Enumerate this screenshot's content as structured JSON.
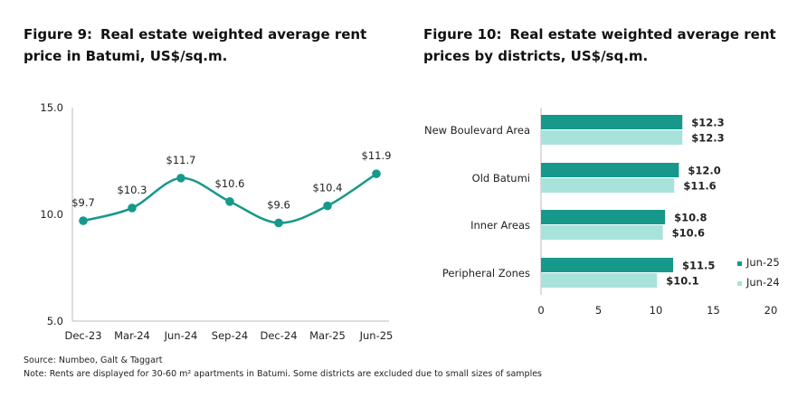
{
  "figure9": {
    "number": "Figure 9:",
    "title": "Real estate weighted average rent price in Batumi, US$/sq.m."
  },
  "figure10": {
    "number": "Figure 10:",
    "title": "Real estate weighted average rent prices by districts, US$/sq.m."
  },
  "footer": {
    "source": "Source: Numbeo, Galt & Taggart",
    "note": "Note: Rents are displayed for 30-60 m² apartments in Batumi. Some districts are excluded due to small sizes of samples"
  },
  "colors": {
    "primary": "#16998a",
    "secondary": "#a8e3db",
    "axis": "#bbbbbb",
    "text": "#222222"
  },
  "chart_data": [
    {
      "type": "line",
      "categories": [
        "Dec-23",
        "Mar-24",
        "Jun-24",
        "Sep-24",
        "Dec-24",
        "Mar-25",
        "Jun-25"
      ],
      "values": [
        9.7,
        10.3,
        11.7,
        10.6,
        9.6,
        10.4,
        11.9
      ],
      "data_labels": [
        "$9.7",
        "$10.3",
        "$11.7",
        "$10.6",
        "$9.6",
        "$10.4",
        "$11.9"
      ],
      "ylim": [
        5.0,
        15.0
      ],
      "yticks": [
        "5.0",
        "10.0",
        "15.0"
      ],
      "smooth": true,
      "grid": false
    },
    {
      "type": "bar",
      "orientation": "horizontal",
      "categories": [
        "New Boulevard Area",
        "Old Batumi",
        "Inner Areas",
        "Peripheral Zones"
      ],
      "series": [
        {
          "name": "Jun-25",
          "values": [
            12.3,
            12.0,
            10.8,
            11.5
          ],
          "labels": [
            "$12.3",
            "$12.0",
            "$10.8",
            "$11.5"
          ]
        },
        {
          "name": "Jun-24",
          "values": [
            12.3,
            11.6,
            10.6,
            10.1
          ],
          "labels": [
            "$12.3",
            "$11.6",
            "$10.6",
            "$10.1"
          ]
        }
      ],
      "xlim": [
        0,
        20
      ],
      "xticks": [
        "0",
        "5",
        "10",
        "15",
        "20"
      ],
      "legend": "bottom-right",
      "grid": false
    }
  ]
}
